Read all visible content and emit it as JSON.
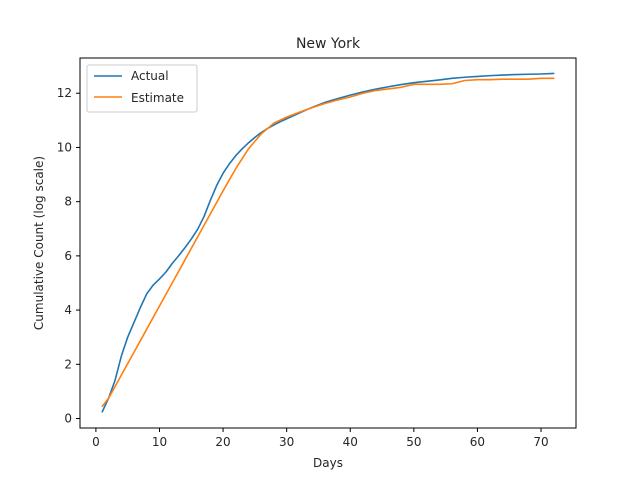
{
  "chart_data": {
    "type": "line",
    "title": "New York",
    "xlabel": "Days",
    "ylabel": "Cumulative Count (log scale)",
    "xlim": [
      -2.5,
      75.5
    ],
    "ylim": [
      -0.35,
      13.3
    ],
    "xticks": [
      0,
      10,
      20,
      30,
      40,
      50,
      60,
      70
    ],
    "yticks": [
      0,
      2,
      4,
      6,
      8,
      10,
      12
    ],
    "grid": false,
    "legend_position": "top-left",
    "series": [
      {
        "name": "Actual",
        "color": "#1f77b4",
        "x": [
          1,
          2,
          3,
          4,
          5,
          6,
          7,
          8,
          9,
          10,
          11,
          12,
          13,
          14,
          15,
          16,
          17,
          18,
          19,
          20,
          21,
          22,
          23,
          24,
          25,
          26,
          27,
          28,
          29,
          30,
          32,
          34,
          36,
          38,
          40,
          42,
          44,
          46,
          48,
          50,
          52,
          54,
          56,
          58,
          60,
          62,
          64,
          66,
          68,
          70,
          72
        ],
        "values": [
          0.25,
          0.75,
          1.4,
          2.3,
          3.0,
          3.55,
          4.1,
          4.6,
          4.92,
          5.15,
          5.4,
          5.72,
          6.0,
          6.3,
          6.62,
          6.98,
          7.45,
          8.05,
          8.6,
          9.05,
          9.4,
          9.7,
          9.95,
          10.17,
          10.37,
          10.55,
          10.7,
          10.83,
          10.95,
          11.06,
          11.27,
          11.48,
          11.66,
          11.8,
          11.93,
          12.05,
          12.15,
          12.24,
          12.32,
          12.39,
          12.44,
          12.49,
          12.55,
          12.59,
          12.62,
          12.65,
          12.67,
          12.69,
          12.7,
          12.71,
          12.73
        ]
      },
      {
        "name": "Estimate",
        "color": "#ff7f0e",
        "x": [
          1,
          2,
          4,
          6,
          8,
          10,
          12,
          14,
          16,
          18,
          20,
          22,
          24,
          26,
          28,
          30,
          32,
          34,
          36,
          38,
          40,
          42,
          44,
          46,
          48,
          50,
          52,
          54,
          56,
          58,
          60,
          62,
          64,
          66,
          68,
          70,
          72
        ],
        "values": [
          0.45,
          0.75,
          1.6,
          2.45,
          3.3,
          4.15,
          5.0,
          5.85,
          6.7,
          7.55,
          8.4,
          9.22,
          9.95,
          10.5,
          10.9,
          11.12,
          11.3,
          11.47,
          11.62,
          11.75,
          11.86,
          12.0,
          12.1,
          12.16,
          12.22,
          12.33,
          12.33,
          12.33,
          12.35,
          12.47,
          12.5,
          12.5,
          12.52,
          12.52,
          12.52,
          12.55,
          12.55
        ]
      }
    ]
  }
}
